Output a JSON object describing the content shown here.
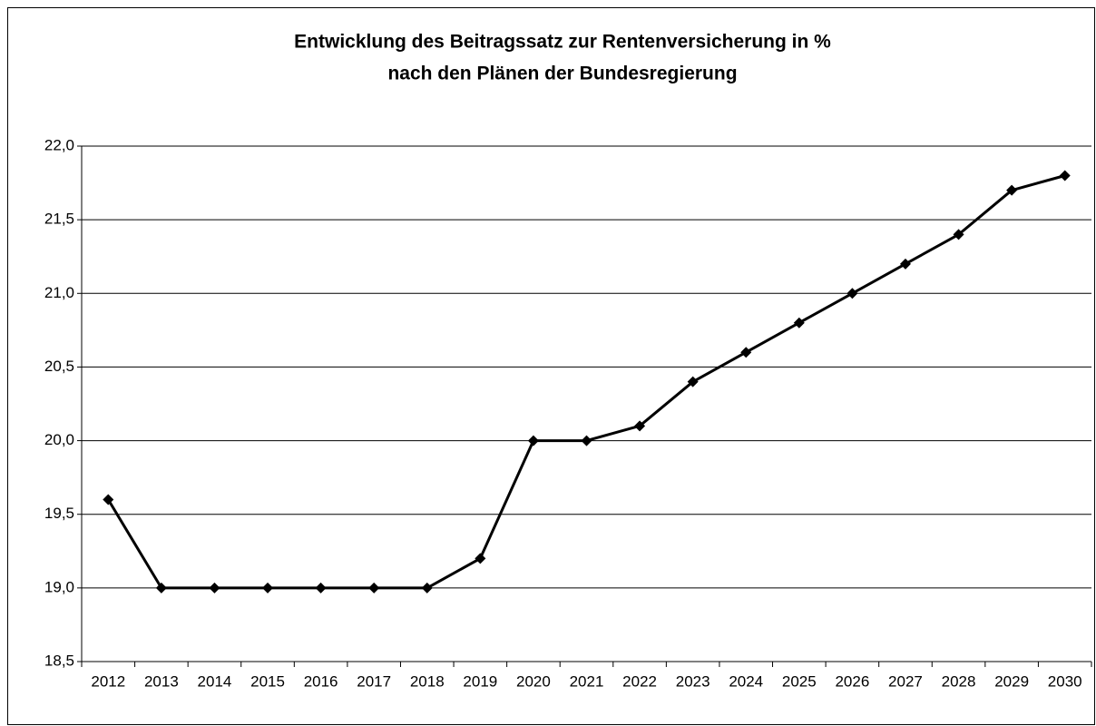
{
  "chart_data": {
    "type": "line",
    "title": "Entwicklung des Beitragssatz zur Rentenversicherung in %",
    "subtitle": "nach den Plänen der Bundesregierung",
    "categories": [
      "2012",
      "2013",
      "2014",
      "2015",
      "2016",
      "2017",
      "2018",
      "2019",
      "2020",
      "2021",
      "2022",
      "2023",
      "2024",
      "2025",
      "2026",
      "2027",
      "2028",
      "2029",
      "2030"
    ],
    "values": [
      19.6,
      19.0,
      19.0,
      19.0,
      19.0,
      19.0,
      19.0,
      19.2,
      20.0,
      20.0,
      20.1,
      20.4,
      20.6,
      20.8,
      21.0,
      21.2,
      21.4,
      21.7,
      21.8
    ],
    "color": "#000000",
    "ylim": [
      18.5,
      22.0
    ],
    "yticks": [
      {
        "value": 18.5,
        "label": "18,5"
      },
      {
        "value": 19.0,
        "label": "19,0"
      },
      {
        "value": 19.5,
        "label": "19,5"
      },
      {
        "value": 20.0,
        "label": "20,0"
      },
      {
        "value": 20.5,
        "label": "20,5"
      },
      {
        "value": 21.0,
        "label": "21,0"
      },
      {
        "value": 21.5,
        "label": "21,5"
      },
      {
        "value": 22.0,
        "label": "22,0"
      }
    ],
    "grid": true
  }
}
